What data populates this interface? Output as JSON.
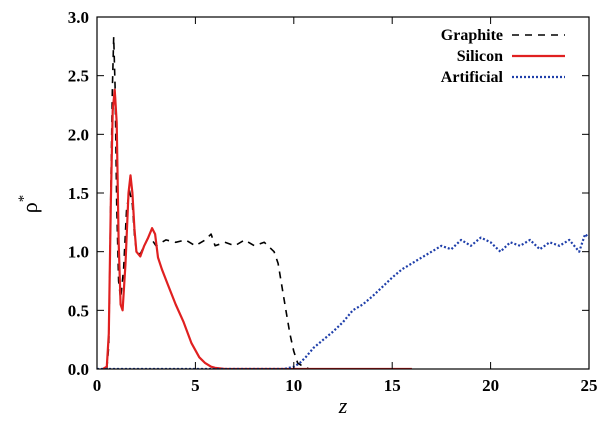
{
  "chart_data": {
    "type": "line",
    "xlabel": "z",
    "ylabel": "ρ",
    "ylabel_superscript": "*",
    "xlim": [
      0,
      25
    ],
    "ylim": [
      0,
      3.0
    ],
    "x_ticks": [
      "0",
      "5",
      "10",
      "15",
      "20",
      "25"
    ],
    "y_ticks": [
      "0.0",
      "0.5",
      "1.0",
      "1.5",
      "2.0",
      "2.5",
      "3.0"
    ],
    "grid": false,
    "legend_position": "top-right",
    "series": [
      {
        "name": "Graphite",
        "color": "#000000",
        "style": "dashed",
        "x": [
          0.5,
          0.6,
          0.7,
          0.78,
          0.85,
          0.92,
          1.0,
          1.1,
          1.2,
          1.35,
          1.5,
          1.65,
          1.8,
          1.9,
          2.0,
          2.2,
          2.4,
          2.6,
          2.8,
          3.0,
          3.5,
          4.0,
          4.5,
          5.0,
          5.5,
          5.8,
          6.0,
          6.5,
          7.0,
          7.5,
          8.0,
          8.5,
          9.0,
          9.2,
          9.4,
          9.6,
          9.8,
          10.0,
          10.2,
          10.5,
          10.8,
          11.0
        ],
        "y": [
          0.0,
          0.2,
          1.5,
          2.4,
          2.83,
          2.4,
          1.4,
          0.75,
          0.6,
          0.85,
          1.35,
          1.52,
          1.4,
          1.15,
          1.0,
          0.98,
          1.05,
          1.12,
          1.1,
          1.05,
          1.1,
          1.08,
          1.1,
          1.05,
          1.1,
          1.15,
          1.05,
          1.08,
          1.05,
          1.1,
          1.05,
          1.08,
          1.0,
          0.9,
          0.7,
          0.5,
          0.3,
          0.15,
          0.05,
          0.02,
          0.0,
          0.0
        ]
      },
      {
        "name": "Silicon",
        "color": "#e02020",
        "style": "solid",
        "x": [
          0.3,
          0.5,
          0.6,
          0.7,
          0.8,
          0.9,
          1.0,
          1.1,
          1.2,
          1.3,
          1.45,
          1.6,
          1.7,
          1.8,
          1.9,
          2.0,
          2.2,
          2.4,
          2.6,
          2.8,
          2.95,
          3.1,
          3.3,
          3.6,
          4.0,
          4.4,
          4.8,
          5.2,
          5.5,
          5.8,
          6.0,
          6.5,
          7.0,
          8.0,
          10.0,
          12.0,
          14.0,
          16.0
        ],
        "y": [
          0.0,
          0.02,
          0.3,
          1.4,
          2.2,
          2.38,
          2.1,
          1.1,
          0.55,
          0.5,
          0.9,
          1.5,
          1.65,
          1.5,
          1.2,
          1.0,
          0.96,
          1.05,
          1.12,
          1.2,
          1.15,
          0.95,
          0.85,
          0.72,
          0.55,
          0.4,
          0.22,
          0.1,
          0.05,
          0.02,
          0.01,
          0.0,
          0.0,
          0.0,
          0.0,
          0.0,
          0.0,
          0.0
        ]
      },
      {
        "name": "Artificial",
        "color": "#1f3faa",
        "style": "dotted",
        "x": [
          0.0,
          2.0,
          4.0,
          6.0,
          8.0,
          9.5,
          10.0,
          10.3,
          10.6,
          11.0,
          11.5,
          12.0,
          12.5,
          13.0,
          13.5,
          14.0,
          14.5,
          15.0,
          15.5,
          16.0,
          16.5,
          17.0,
          17.5,
          18.0,
          18.5,
          19.0,
          19.5,
          20.0,
          20.5,
          21.0,
          21.5,
          22.0,
          22.5,
          23.0,
          23.5,
          24.0,
          24.5,
          24.8,
          25.0
        ],
        "y": [
          0.0,
          0.0,
          0.0,
          0.0,
          0.0,
          0.0,
          0.02,
          0.05,
          0.1,
          0.18,
          0.25,
          0.32,
          0.4,
          0.5,
          0.55,
          0.62,
          0.7,
          0.78,
          0.85,
          0.9,
          0.95,
          1.0,
          1.05,
          1.02,
          1.1,
          1.05,
          1.12,
          1.08,
          1.0,
          1.08,
          1.05,
          1.1,
          1.02,
          1.08,
          1.05,
          1.1,
          1.0,
          1.15,
          1.12
        ]
      }
    ]
  }
}
